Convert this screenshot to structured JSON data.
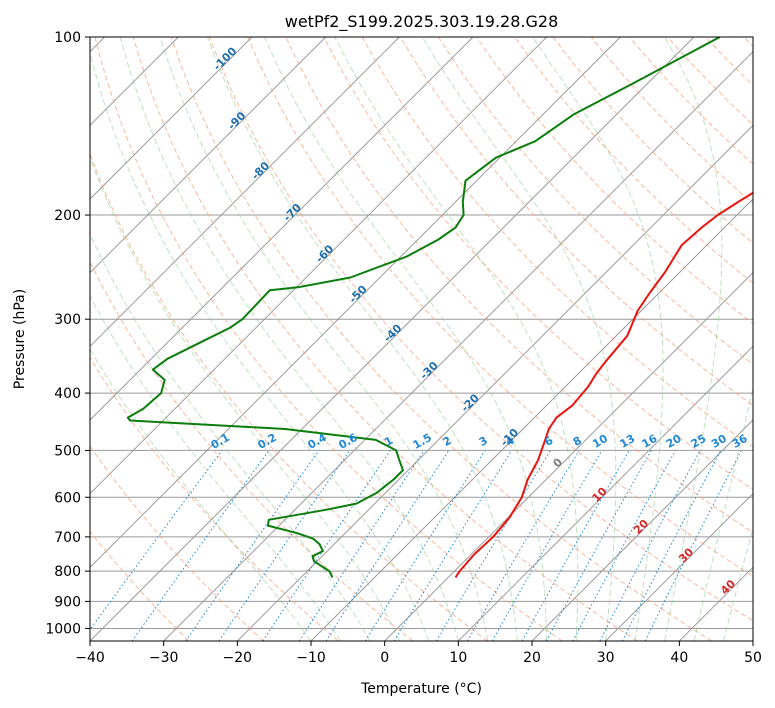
{
  "chart_data": {
    "type": "line",
    "title": "wetPf2_S199.2025.303.19.28.G28",
    "xlabel": "Temperature (°C)",
    "ylabel": "Pressure (hPa)",
    "xlim": [
      -40,
      50
    ],
    "ylim": [
      1050,
      100
    ],
    "y_scale": "log",
    "x_ticks": [
      -40,
      -30,
      -20,
      -10,
      0,
      10,
      20,
      30,
      40,
      50
    ],
    "y_ticks": [
      100,
      200,
      300,
      400,
      500,
      600,
      700,
      800,
      900,
      1000
    ],
    "grid": true,
    "series": [
      {
        "kind": "temperature",
        "color": "#e8150f",
        "points": [
          [
            -5.5,
            100
          ],
          [
            -6.5,
            115
          ],
          [
            -7.6,
            130
          ],
          [
            -8.0,
            145
          ],
          [
            -8.3,
            160
          ],
          [
            -9.8,
            175
          ],
          [
            -11.6,
            190
          ],
          [
            -12.6,
            200
          ],
          [
            -13.1,
            210
          ],
          [
            -13.4,
            225
          ],
          [
            -12.0,
            250
          ],
          [
            -11.3,
            270
          ],
          [
            -10.5,
            290
          ],
          [
            -8.5,
            320
          ],
          [
            -8.0,
            350
          ],
          [
            -7.6,
            370
          ],
          [
            -6.9,
            390
          ],
          [
            -6.5,
            420
          ],
          [
            -7.0,
            440
          ],
          [
            -6.5,
            460
          ],
          [
            -5.5,
            480
          ],
          [
            -3.7,
            520
          ],
          [
            -2.5,
            560
          ],
          [
            -0.9,
            600
          ],
          [
            0.2,
            650
          ],
          [
            0.6,
            700
          ],
          [
            0.4,
            750
          ],
          [
            0.7,
            800
          ],
          [
            1.0,
            820
          ]
        ]
      },
      {
        "kind": "dewpoint",
        "color": "#0a7d0a",
        "points": [
          [
            -36.5,
            100
          ],
          [
            -42.0,
            120
          ],
          [
            -45.8,
            135
          ],
          [
            -47.4,
            150
          ],
          [
            -50.5,
            160
          ],
          [
            -51.5,
            175
          ],
          [
            -49.0,
            190
          ],
          [
            -47.1,
            200
          ],
          [
            -46.5,
            210
          ],
          [
            -47.2,
            220
          ],
          [
            -49.2,
            235
          ],
          [
            -54.0,
            255
          ],
          [
            -59.8,
            265
          ],
          [
            -63.2,
            268
          ],
          [
            -63.0,
            300
          ],
          [
            -63.5,
            310
          ],
          [
            -65.2,
            325
          ],
          [
            -67.8,
            350
          ],
          [
            -68.3,
            365
          ],
          [
            -65.3,
            380
          ],
          [
            -64.0,
            400
          ],
          [
            -64.3,
            425
          ],
          [
            -65.2,
            440
          ],
          [
            -64.5,
            445
          ],
          [
            -42.3,
            460
          ],
          [
            -28.5,
            480
          ],
          [
            -24.3,
            500
          ],
          [
            -22.5,
            520
          ],
          [
            -20.7,
            540
          ],
          [
            -20.7,
            560
          ],
          [
            -21.2,
            590
          ],
          [
            -22.5,
            615
          ],
          [
            -25.8,
            630
          ],
          [
            -32.2,
            655
          ],
          [
            -31.5,
            670
          ],
          [
            -26.5,
            690
          ],
          [
            -23.6,
            705
          ],
          [
            -22.0,
            720
          ],
          [
            -20.6,
            740
          ],
          [
            -21.3,
            755
          ],
          [
            -20.4,
            770
          ],
          [
            -17.0,
            800
          ],
          [
            -15.7,
            820
          ]
        ]
      }
    ],
    "mixing_ratio_labels": [
      "0.1",
      "0.2",
      "0.4",
      "0.6",
      "1",
      "1.5",
      "2",
      "3",
      "4",
      "6",
      "8",
      "10",
      "13",
      "16",
      "20",
      "25",
      "30",
      "36"
    ],
    "mixing_ratio_values": [
      0.1,
      0.2,
      0.4,
      0.6,
      1,
      1.5,
      2,
      3,
      4,
      6,
      8,
      10,
      13,
      16,
      20,
      25,
      30,
      36
    ],
    "dry_adiabat_labels": [
      "-100",
      "-90",
      "-80",
      "-70",
      "-60",
      "-50",
      "-40",
      "-30",
      "-20",
      "-10"
    ],
    "moist_adiabat_labels": [
      "0",
      "10",
      "20",
      "30",
      "40"
    ],
    "colors": {
      "temperature": "#e8150f",
      "dewpoint": "#0a7d0a",
      "isotherm": "#9a9a9a",
      "isobar": "#9a9a9a",
      "dry_adiabat": "#f4a07f",
      "moist_adiabat": "#8cc98c",
      "mixing_ratio": "#1f88d8",
      "dry_adiabat_label": "#1f6fb0",
      "moist_adiabat_label": "#d62728",
      "isohume_label": "#1f88d8",
      "zero_label": "#7f7f7f"
    }
  }
}
